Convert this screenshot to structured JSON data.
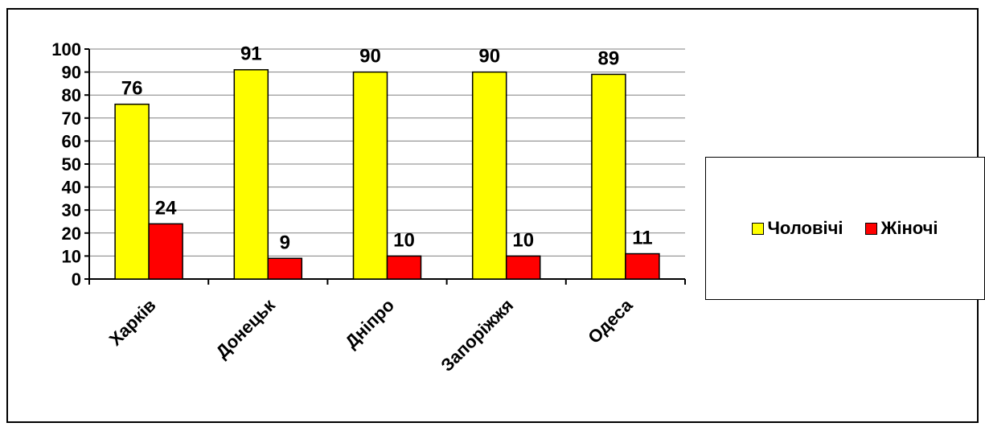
{
  "chart_data": {
    "type": "bar",
    "categories": [
      "Харків",
      "Донецьк",
      "Дніпро",
      "Запоріжжя",
      "Одеса"
    ],
    "series": [
      {
        "name": "Чоловічі",
        "values": [
          76,
          91,
          90,
          90,
          89
        ],
        "color": "#ffff00"
      },
      {
        "name": "Жіночі",
        "values": [
          24,
          9,
          10,
          10,
          11
        ],
        "color": "#ff0000"
      }
    ],
    "title": "",
    "xlabel": "",
    "ylabel": "",
    "ylim": [
      0,
      100
    ],
    "yticks": [
      "0",
      "10",
      "20",
      "30",
      "40",
      "50",
      "60",
      "70",
      "80",
      "90",
      "100"
    ],
    "grid": true,
    "legend_position": "right"
  }
}
